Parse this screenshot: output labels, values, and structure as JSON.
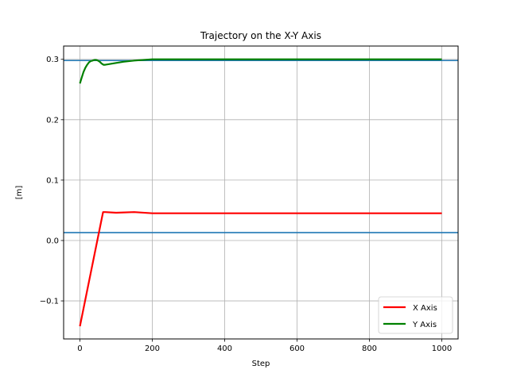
{
  "chart_data": {
    "type": "line",
    "title": "Trajectory on the X-Y Axis",
    "xlabel": "Step",
    "ylabel": "[m]",
    "xlim": [
      -45,
      1045
    ],
    "ylim": [
      -0.163,
      0.322
    ],
    "xticks": [
      0,
      200,
      400,
      600,
      800,
      1000
    ],
    "xtick_labels": [
      "0",
      "200",
      "400",
      "600",
      "800",
      "1000"
    ],
    "yticks": [
      -0.1,
      0.0,
      0.1,
      0.2,
      0.3
    ],
    "ytick_labels": [
      "−0.1",
      "0.0",
      "0.1",
      "0.2",
      "0.3"
    ],
    "grid": true,
    "legend_position": "bottom-right",
    "series": [
      {
        "name": "X Axis",
        "color": "#ff0000",
        "width": 2.2,
        "points": [
          [
            0,
            -0.142
          ],
          [
            64,
            0.047
          ],
          [
            70,
            0.047
          ],
          [
            100,
            0.046
          ],
          [
            150,
            0.047
          ],
          [
            200,
            0.045
          ],
          [
            400,
            0.045
          ],
          [
            600,
            0.045
          ],
          [
            800,
            0.045
          ],
          [
            1000,
            0.045
          ]
        ]
      },
      {
        "name": "Y Axis",
        "color": "#008000",
        "width": 2.2,
        "points": [
          [
            0,
            0.26
          ],
          [
            5,
            0.27
          ],
          [
            10,
            0.279
          ],
          [
            15,
            0.286
          ],
          [
            20,
            0.291
          ],
          [
            25,
            0.295
          ],
          [
            30,
            0.297
          ],
          [
            35,
            0.298
          ],
          [
            40,
            0.299
          ],
          [
            45,
            0.299
          ],
          [
            50,
            0.298
          ],
          [
            55,
            0.296
          ],
          [
            60,
            0.293
          ],
          [
            65,
            0.291
          ],
          [
            70,
            0.291
          ],
          [
            80,
            0.292
          ],
          [
            90,
            0.293
          ],
          [
            100,
            0.294
          ],
          [
            120,
            0.296
          ],
          [
            150,
            0.298
          ],
          [
            200,
            0.3
          ],
          [
            300,
            0.3
          ],
          [
            500,
            0.3
          ],
          [
            800,
            0.3
          ],
          [
            1000,
            0.3
          ]
        ]
      }
    ],
    "reference_lines": [
      {
        "y": 0.298,
        "color": "#1f77b4"
      },
      {
        "y": 0.013,
        "color": "#1f77b4"
      }
    ]
  }
}
